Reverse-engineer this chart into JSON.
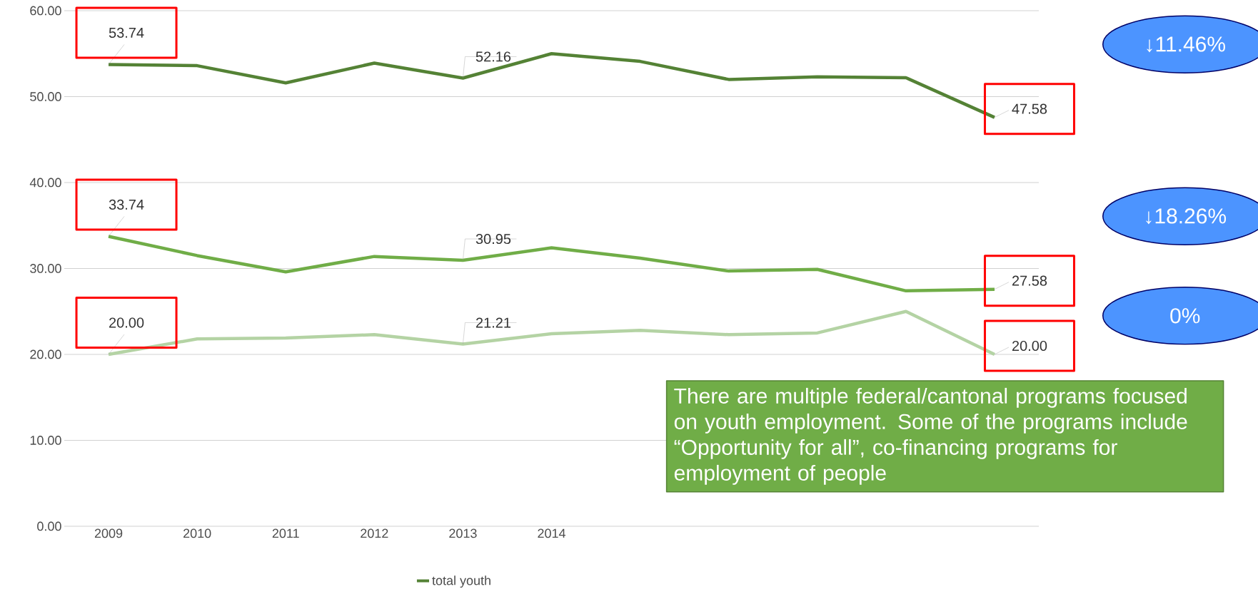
{
  "chart_data": {
    "type": "line",
    "categories": [
      "2009",
      "2010",
      "2011",
      "2012",
      "2013",
      "2014",
      null,
      null,
      null,
      null,
      null
    ],
    "series": [
      {
        "name": "total youth",
        "color": "#548235",
        "values": [
          53.74,
          53.6,
          51.6,
          53.9,
          52.16,
          55.0,
          54.1,
          52.0,
          52.3,
          52.2,
          47.58
        ],
        "value_labels": [
          "53.74",
          null,
          null,
          null,
          "52.16",
          null,
          null,
          null,
          null,
          null,
          "47.58"
        ]
      },
      {
        "color": "#70ad47",
        "values": [
          33.74,
          31.5,
          29.6,
          31.4,
          30.95,
          32.4,
          31.2,
          29.7,
          29.9,
          27.4,
          27.58
        ],
        "value_labels": [
          "33.74",
          null,
          null,
          null,
          "30.95",
          null,
          null,
          null,
          null,
          null,
          "27.58"
        ]
      },
      {
        "color": "#b4d3a4",
        "values": [
          20.0,
          21.8,
          21.9,
          22.3,
          21.21,
          22.4,
          22.8,
          22.3,
          22.5,
          25.0,
          20.0
        ],
        "value_labels": [
          "20.00",
          null,
          null,
          null,
          "21.21",
          null,
          null,
          null,
          null,
          null,
          "20.00"
        ]
      }
    ],
    "ylim": [
      0,
      60
    ],
    "yticks": [
      {
        "value": 0,
        "label": "0.00"
      },
      {
        "value": 10,
        "label": "10.00"
      },
      {
        "value": 20,
        "label": "20.00"
      },
      {
        "value": 30,
        "label": "30.00"
      },
      {
        "value": 40,
        "label": "40.00"
      },
      {
        "value": 50,
        "label": "50.00"
      },
      {
        "value": 60,
        "label": "60.00"
      }
    ],
    "grid": "y",
    "legend": "bottom",
    "marker": "none",
    "line_style": "solid",
    "annotations": [
      "↓11.46%",
      "↓18.26%",
      "0%",
      "There are multiple federal/cantonal programs focused on youth employment. Some of the programs include “Opportunity for all”, co-financing programs for employment of people"
    ]
  }
}
